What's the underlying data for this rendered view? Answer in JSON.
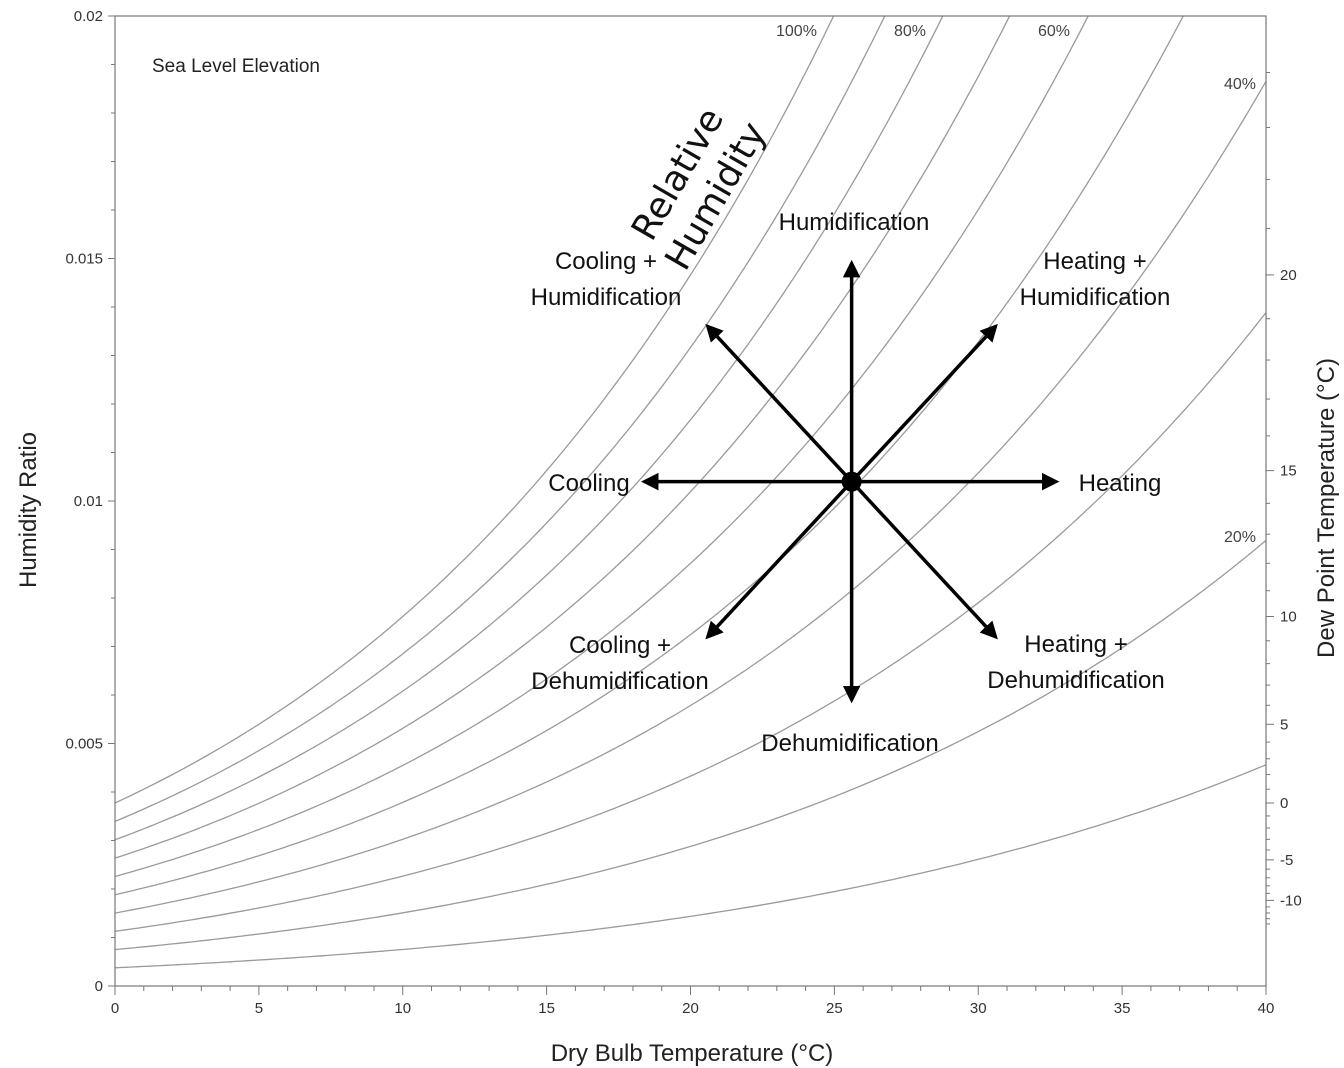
{
  "chart_data": {
    "type": "line",
    "annotation": "Sea Level Elevation",
    "xlabel": "Dry Bulb Temperature (°C)",
    "ylabel": "Humidity Ratio",
    "y2label": "Dew Point Temperature (°C)",
    "xlim": [
      0,
      40
    ],
    "ylim": [
      0,
      0.02
    ],
    "x_ticks": [
      0,
      5,
      10,
      15,
      20,
      25,
      30,
      35,
      40
    ],
    "x_tick_labels": [
      "0",
      "5",
      "10",
      "15",
      "20",
      "25",
      "30",
      "35",
      "40"
    ],
    "y_ticks": [
      0,
      0.005,
      0.01,
      0.015,
      0.02
    ],
    "y_tick_labels": [
      "0",
      "0.005",
      "0.01",
      "0.015",
      "0.02"
    ],
    "dew_point_ticks": [
      -10,
      -5,
      0,
      5,
      10,
      15,
      20
    ],
    "dew_point_tick_labels": [
      "-10",
      "-5",
      "0",
      "5",
      "10",
      "15",
      "20"
    ],
    "rh_curves": [
      0.1,
      0.2,
      0.3,
      0.4,
      0.5,
      0.6,
      0.7,
      0.8,
      0.9,
      1.0
    ],
    "rh_curve_labels": [
      {
        "rh": 1.0,
        "text": "100%"
      },
      {
        "rh": 0.8,
        "text": "80%"
      },
      {
        "rh": 0.6,
        "text": "60%"
      },
      {
        "rh": 0.4,
        "text": "40%"
      },
      {
        "rh": 0.2,
        "text": "20%"
      }
    ],
    "rh_title_lines": [
      "Relative",
      "Humidity"
    ],
    "state_point": {
      "x": 25.6,
      "y": 0.0104
    },
    "processes": [
      {
        "name": "Humidification",
        "lines": [
          "Humidification"
        ],
        "to": {
          "x": 25.6,
          "y": 0.0149
        }
      },
      {
        "name": "Dehumidification",
        "lines": [
          "Dehumidification"
        ],
        "to": {
          "x": 25.6,
          "y": 0.0059
        }
      },
      {
        "name": "Heating",
        "lines": [
          "Heating"
        ],
        "to": {
          "x": 32.7,
          "y": 0.0104
        }
      },
      {
        "name": "Cooling",
        "lines": [
          "Cooling"
        ],
        "to": {
          "x": 18.4,
          "y": 0.0104
        }
      },
      {
        "name": "Heating + Humidification",
        "lines": [
          "Heating +",
          "Humidification"
        ],
        "to": {
          "x": 30.6,
          "y": 0.0136
        }
      },
      {
        "name": "Cooling + Humidification",
        "lines": [
          "Cooling +",
          "Humidification"
        ],
        "to": {
          "x": 20.6,
          "y": 0.0136
        }
      },
      {
        "name": "Cooling + Dehumidification",
        "lines": [
          "Cooling +",
          "Dehumidification"
        ],
        "to": {
          "x": 20.6,
          "y": 0.0072
        }
      },
      {
        "name": "Heating + Dehumidification",
        "lines": [
          "Heating +",
          "Dehumidification"
        ],
        "to": {
          "x": 30.6,
          "y": 0.0072
        }
      }
    ]
  }
}
